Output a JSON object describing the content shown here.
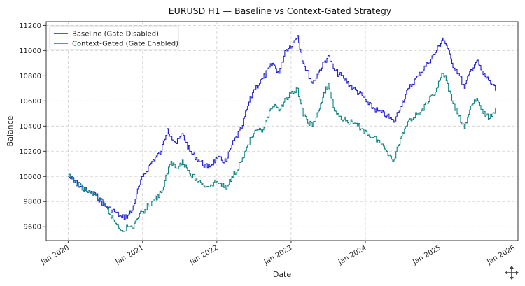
{
  "chart_data": {
    "type": "line",
    "title": "EURUSD H1 — Baseline vs Context-Gated Strategy",
    "xlabel": "Date",
    "ylabel": "Balance",
    "x_ticks": [
      "Jan 2020",
      "Jan 2021",
      "Jan 2022",
      "Jan 2023",
      "Jan 2024",
      "Jan 2025",
      "Jan 2026"
    ],
    "y_ticks": [
      9600,
      9800,
      10000,
      10200,
      10400,
      10600,
      10800,
      11000,
      11200
    ],
    "xlim": [
      "2019-09-15",
      "2026-01-20"
    ],
    "ylim": [
      9490,
      11230
    ],
    "grid": true,
    "legend_position": "top-left",
    "series": [
      {
        "name": "Baseline (Gate Disabled)",
        "color": "#1f1fd6",
        "points": [
          [
            "2020-01-01",
            10000
          ],
          [
            "2020-02-15",
            9940
          ],
          [
            "2020-04-01",
            9880
          ],
          [
            "2020-05-15",
            9850
          ],
          [
            "2020-07-01",
            9760
          ],
          [
            "2020-08-15",
            9720
          ],
          [
            "2020-09-20",
            9670
          ],
          [
            "2020-10-20",
            9690
          ],
          [
            "2020-11-10",
            9730
          ],
          [
            "2020-12-01",
            9860
          ],
          [
            "2021-01-01",
            10000
          ],
          [
            "2021-02-15",
            10120
          ],
          [
            "2021-04-01",
            10200
          ],
          [
            "2021-05-01",
            10380
          ],
          [
            "2021-05-20",
            10320
          ],
          [
            "2021-06-15",
            10260
          ],
          [
            "2021-07-15",
            10340
          ],
          [
            "2021-08-20",
            10200
          ],
          [
            "2021-10-01",
            10130
          ],
          [
            "2021-11-15",
            10070
          ],
          [
            "2022-01-01",
            10140
          ],
          [
            "2022-02-15",
            10120
          ],
          [
            "2022-03-15",
            10250
          ],
          [
            "2022-05-01",
            10380
          ],
          [
            "2022-06-01",
            10560
          ],
          [
            "2022-07-01",
            10690
          ],
          [
            "2022-08-15",
            10780
          ],
          [
            "2022-10-01",
            10900
          ],
          [
            "2022-11-01",
            10820
          ],
          [
            "2022-12-01",
            11000
          ],
          [
            "2023-01-10",
            11060
          ],
          [
            "2023-02-01",
            11120
          ],
          [
            "2023-03-01",
            10900
          ],
          [
            "2023-04-15",
            10740
          ],
          [
            "2023-05-15",
            10830
          ],
          [
            "2023-07-01",
            10960
          ],
          [
            "2023-08-01",
            10840
          ],
          [
            "2023-09-15",
            10780
          ],
          [
            "2023-11-01",
            10700
          ],
          [
            "2023-12-15",
            10640
          ],
          [
            "2024-01-15",
            10570
          ],
          [
            "2024-03-01",
            10520
          ],
          [
            "2024-04-15",
            10480
          ],
          [
            "2024-05-20",
            10430
          ],
          [
            "2024-06-20",
            10560
          ],
          [
            "2024-08-01",
            10700
          ],
          [
            "2024-09-15",
            10800
          ],
          [
            "2024-11-01",
            10900
          ],
          [
            "2024-12-15",
            11000
          ],
          [
            "2025-01-15",
            11100
          ],
          [
            "2025-02-01",
            11040
          ],
          [
            "2025-03-01",
            10900
          ],
          [
            "2025-04-01",
            10820
          ],
          [
            "2025-05-01",
            10700
          ],
          [
            "2025-06-01",
            10850
          ],
          [
            "2025-07-01",
            10920
          ],
          [
            "2025-08-01",
            10810
          ],
          [
            "2025-09-01",
            10760
          ],
          [
            "2025-10-01",
            10680
          ]
        ]
      },
      {
        "name": "Context-Gated (Gate Enabled)",
        "color": "#0f8282",
        "points": [
          [
            "2020-01-01",
            10000
          ],
          [
            "2020-02-15",
            9940
          ],
          [
            "2020-04-01",
            9880
          ],
          [
            "2020-05-15",
            9850
          ],
          [
            "2020-07-01",
            9760
          ],
          [
            "2020-08-15",
            9640
          ],
          [
            "2020-09-20",
            9570
          ],
          [
            "2020-10-20",
            9600
          ],
          [
            "2020-11-10",
            9590
          ],
          [
            "2020-12-01",
            9660
          ],
          [
            "2021-01-01",
            9720
          ],
          [
            "2021-02-15",
            9800
          ],
          [
            "2021-04-01",
            9870
          ],
          [
            "2021-05-01",
            10020
          ],
          [
            "2021-05-20",
            10120
          ],
          [
            "2021-06-15",
            10060
          ],
          [
            "2021-07-15",
            10130
          ],
          [
            "2021-08-20",
            10020
          ],
          [
            "2021-10-01",
            9960
          ],
          [
            "2021-11-15",
            9920
          ],
          [
            "2022-01-01",
            9960
          ],
          [
            "2022-02-15",
            9900
          ],
          [
            "2022-03-15",
            10000
          ],
          [
            "2022-05-01",
            10120
          ],
          [
            "2022-06-01",
            10250
          ],
          [
            "2022-07-01",
            10340
          ],
          [
            "2022-08-15",
            10370
          ],
          [
            "2022-10-01",
            10560
          ],
          [
            "2022-11-01",
            10520
          ],
          [
            "2022-12-01",
            10620
          ],
          [
            "2023-01-10",
            10660
          ],
          [
            "2023-02-01",
            10700
          ],
          [
            "2023-03-01",
            10480
          ],
          [
            "2023-04-15",
            10400
          ],
          [
            "2023-05-15",
            10520
          ],
          [
            "2023-07-01",
            10740
          ],
          [
            "2023-08-01",
            10520
          ],
          [
            "2023-09-15",
            10450
          ],
          [
            "2023-11-01",
            10420
          ],
          [
            "2023-12-15",
            10380
          ],
          [
            "2024-01-15",
            10330
          ],
          [
            "2024-03-01",
            10290
          ],
          [
            "2024-04-15",
            10200
          ],
          [
            "2024-05-20",
            10130
          ],
          [
            "2024-06-20",
            10300
          ],
          [
            "2024-08-01",
            10450
          ],
          [
            "2024-09-15",
            10500
          ],
          [
            "2024-11-01",
            10580
          ],
          [
            "2024-12-15",
            10700
          ],
          [
            "2025-01-15",
            10820
          ],
          [
            "2025-02-01",
            10760
          ],
          [
            "2025-03-01",
            10600
          ],
          [
            "2025-04-01",
            10480
          ],
          [
            "2025-05-01",
            10380
          ],
          [
            "2025-06-01",
            10560
          ],
          [
            "2025-07-01",
            10620
          ],
          [
            "2025-08-01",
            10500
          ],
          [
            "2025-09-01",
            10460
          ],
          [
            "2025-10-01",
            10540
          ]
        ]
      }
    ]
  },
  "toolbar": {
    "icon": "move-arrows-icon"
  }
}
